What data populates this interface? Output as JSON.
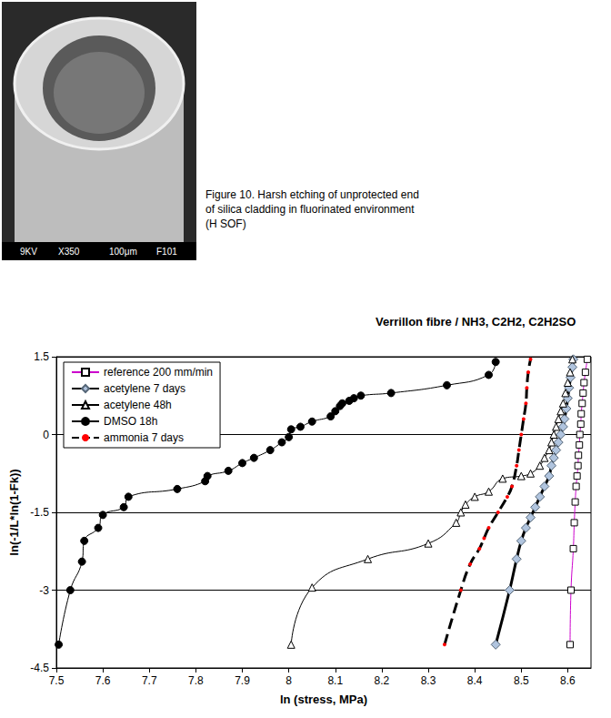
{
  "figure_caption": "Figure 10. Harsh etching of unprotected end of silica cladding in fluorinated environment (H SOF)",
  "photo": {
    "labels": [
      "9KV",
      "X350",
      "100μm",
      "F101"
    ]
  },
  "chart_data": {
    "type": "line",
    "title": "Verrillon fibre / NH3, C2H2, C2H2SO",
    "x_label": "ln (stress, MPa)",
    "y_label": "ln(-1/L*ln(1-Fk))",
    "xlim": [
      7.5,
      8.65
    ],
    "xticks": [
      7.5,
      7.6,
      7.7,
      7.8,
      7.9,
      8,
      8.1,
      8.2,
      8.3,
      8.4,
      8.5,
      8.6
    ],
    "ylim": [
      -4.5,
      1.5
    ],
    "yticks": [
      -4.5,
      -3,
      -1.5,
      0,
      1.5
    ],
    "grid": true,
    "legend": "top-left",
    "series": [
      {
        "name": "reference 200 mm/min",
        "color": "#cc00cc",
        "marker": "square_open",
        "line_style": "solid",
        "x": [
          8.605,
          8.607,
          8.612,
          8.614,
          8.616,
          8.618,
          8.62,
          8.622,
          8.623,
          8.625,
          8.626,
          8.628,
          8.629,
          8.631,
          8.633,
          8.635,
          8.638,
          8.642
        ],
        "values": [
          -4.05,
          -3.0,
          -2.2,
          -1.7,
          -1.3,
          -1.0,
          -0.8,
          -0.6,
          -0.4,
          -0.2,
          0,
          0.2,
          0.4,
          0.6,
          0.8,
          1.0,
          1.2,
          1.45
        ]
      },
      {
        "name": "acetylene 7 days",
        "color": "#000000",
        "marker": "diamond",
        "line_style": "solid",
        "x": [
          8.445,
          8.475,
          8.49,
          8.5,
          8.51,
          8.52,
          8.53,
          8.54,
          8.55,
          8.56,
          8.565,
          8.57,
          8.575,
          8.58,
          8.585,
          8.59,
          8.593,
          8.597,
          8.6,
          8.603,
          8.606,
          8.61,
          8.612
        ],
        "values": [
          -4.05,
          -3.0,
          -2.4,
          -2.05,
          -1.8,
          -1.6,
          -1.4,
          -1.2,
          -1.0,
          -0.8,
          -0.6,
          -0.45,
          -0.3,
          -0.15,
          0,
          0.15,
          0.3,
          0.5,
          0.7,
          0.9,
          1.1,
          1.3,
          1.45
        ]
      },
      {
        "name": "acetylene 48h",
        "color": "#000000",
        "marker": "triangle_open",
        "line_style": "solid",
        "x": [
          8.005,
          8.05,
          8.17,
          8.3,
          8.36,
          8.37,
          8.38,
          8.4,
          8.43,
          8.46,
          8.5,
          8.52,
          8.54,
          8.55,
          8.56,
          8.565,
          8.57,
          8.575,
          8.58,
          8.585,
          8.59,
          8.595,
          8.6,
          8.605,
          8.61
        ],
        "values": [
          -4.05,
          -2.95,
          -2.4,
          -2.1,
          -1.7,
          -1.5,
          -1.35,
          -1.2,
          -1.1,
          -0.85,
          -0.8,
          -0.75,
          -0.6,
          -0.45,
          -0.3,
          -0.15,
          0,
          0.15,
          0.3,
          0.45,
          0.6,
          0.8,
          1.0,
          1.2,
          1.45
        ]
      },
      {
        "name": "DMSO 18h",
        "color": "#000000",
        "marker": "circle",
        "line_style": "solid",
        "x": [
          7.505,
          7.53,
          7.555,
          7.56,
          7.59,
          7.6,
          7.645,
          7.655,
          7.76,
          7.82,
          7.825,
          7.87,
          7.9,
          7.925,
          7.96,
          7.985,
          8.0,
          8.005,
          8.025,
          8.05,
          8.09,
          8.1,
          8.11,
          8.115,
          8.13,
          8.14,
          8.155,
          8.22,
          8.34,
          8.43,
          8.445
        ],
        "values": [
          -4.05,
          -3.0,
          -2.45,
          -2.05,
          -1.8,
          -1.55,
          -1.4,
          -1.2,
          -1.05,
          -0.9,
          -0.8,
          -0.7,
          -0.55,
          -0.45,
          -0.3,
          -0.15,
          -0.05,
          0.1,
          0.15,
          0.25,
          0.35,
          0.45,
          0.55,
          0.6,
          0.65,
          0.7,
          0.75,
          0.8,
          0.95,
          1.15,
          1.4
        ]
      },
      {
        "name": "ammonia 7 days",
        "color": "#000000",
        "marker": "dot",
        "line_style": "dashed",
        "x": [
          8.335,
          8.37,
          8.39,
          8.41,
          8.42,
          8.43,
          8.45,
          8.47,
          8.48,
          8.49,
          8.495,
          8.5,
          8.505,
          8.51,
          8.512,
          8.515,
          8.52
        ],
        "values": [
          -4.05,
          -3.0,
          -2.5,
          -2.2,
          -2.0,
          -1.8,
          -1.5,
          -1.2,
          -1.0,
          -0.6,
          -0.3,
          0,
          0.3,
          0.6,
          0.9,
          1.2,
          1.45
        ]
      }
    ]
  }
}
